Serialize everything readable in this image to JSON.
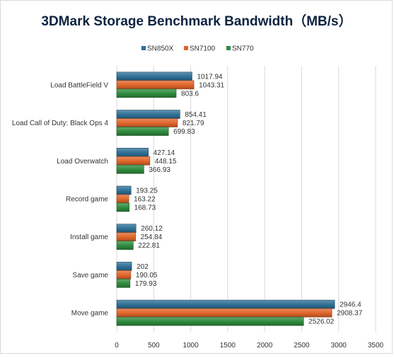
{
  "chart_data": {
    "type": "bar",
    "orientation": "horizontal",
    "title": "3DMark Storage Benchmark Bandwidth（MB/s）",
    "xlabel": "",
    "ylabel": "",
    "xlim": [
      0,
      3500
    ],
    "xticks": [
      0,
      500,
      1000,
      1500,
      2000,
      2500,
      3000,
      3500
    ],
    "grid": true,
    "legend_position": "top",
    "categories": [
      "Load BattleField V",
      "Load Call of Duty: Black Ops 4",
      "Load Overwatch",
      "Record game",
      "Install game",
      "Save game",
      "Move game"
    ],
    "series": [
      {
        "name": "SN850X",
        "color": "#2e6f96",
        "values": [
          1017.94,
          854.41,
          427.14,
          193.25,
          260.12,
          202,
          2946.4
        ],
        "labels": [
          "1017.94",
          "854.41",
          "427.14",
          "193.25",
          "260.12",
          "202",
          "2946.4"
        ]
      },
      {
        "name": "SN7100",
        "color": "#e0652a",
        "values": [
          1043.31,
          821.79,
          448.15,
          163.22,
          254.84,
          190.05,
          2908.37
        ],
        "labels": [
          "1043.31",
          "821.79",
          "448.15",
          "163.22",
          "254.84",
          "190.05",
          "2908.37"
        ]
      },
      {
        "name": "SN770",
        "color": "#2e8b3e",
        "values": [
          803.6,
          699.83,
          366.93,
          168.73,
          222.81,
          179.93,
          2526.02
        ],
        "labels": [
          "803.6",
          "699.83",
          "366.93",
          "168.73",
          "222.81",
          "179.93",
          "2526.02"
        ]
      }
    ]
  }
}
